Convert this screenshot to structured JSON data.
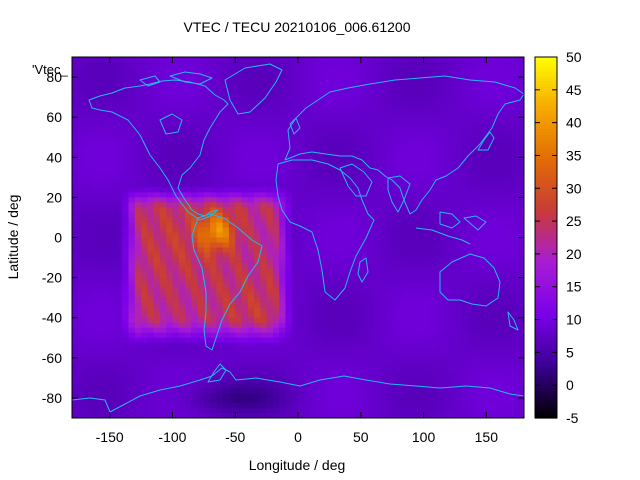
{
  "chart_data": {
    "type": "heatmap",
    "title": "VTEC / TECU 20210106_006.61200",
    "xlabel": "Longitude / deg",
    "ylabel": "Latitude / deg",
    "key_label": "'Vtec_",
    "xlim": [
      -180,
      180
    ],
    "ylim": [
      -90,
      90
    ],
    "x_ticks": [
      -150,
      -100,
      -50,
      0,
      50,
      100,
      150
    ],
    "x_tick_labels": [
      "-150",
      "-100",
      "-50",
      "0",
      "50",
      "100",
      "150"
    ],
    "y_ticks": [
      -80,
      -60,
      -40,
      -20,
      0,
      20,
      40,
      60,
      80
    ],
    "y_tick_labels": [
      "-80",
      "-60",
      "-40",
      "-20",
      "0",
      "20",
      "40",
      "60",
      "80"
    ],
    "colorbar": {
      "range": [
        -5,
        50
      ],
      "ticks": [
        -5,
        0,
        5,
        10,
        15,
        20,
        25,
        30,
        35,
        40,
        45,
        50
      ],
      "tick_labels": [
        "-5",
        "0",
        "5",
        "10",
        "15",
        "20",
        "25",
        "30",
        "35",
        "40",
        "45",
        "50"
      ],
      "colormap": [
        "#000000",
        "#3a0092",
        "#7a00e8",
        "#a71cd6",
        "#c83a3a",
        "#e16b05",
        "#f6a800",
        "#ffff00"
      ]
    },
    "field": {
      "background_vtec": 8,
      "features": [
        {
          "name": "equatorial anomaly core",
          "lon": -65,
          "lat": 3,
          "peak": 42,
          "sigma_lon": 14,
          "sigma_lat": 9
        },
        {
          "name": "daytime plateau",
          "lon_range": [
            -130,
            -15
          ],
          "lat_range": [
            -45,
            18
          ],
          "peak": 27
        },
        {
          "name": "southern polar depletion",
          "lon": -50,
          "lat": -80,
          "peak": 3
        }
      ]
    },
    "overlay": "coastlines"
  }
}
